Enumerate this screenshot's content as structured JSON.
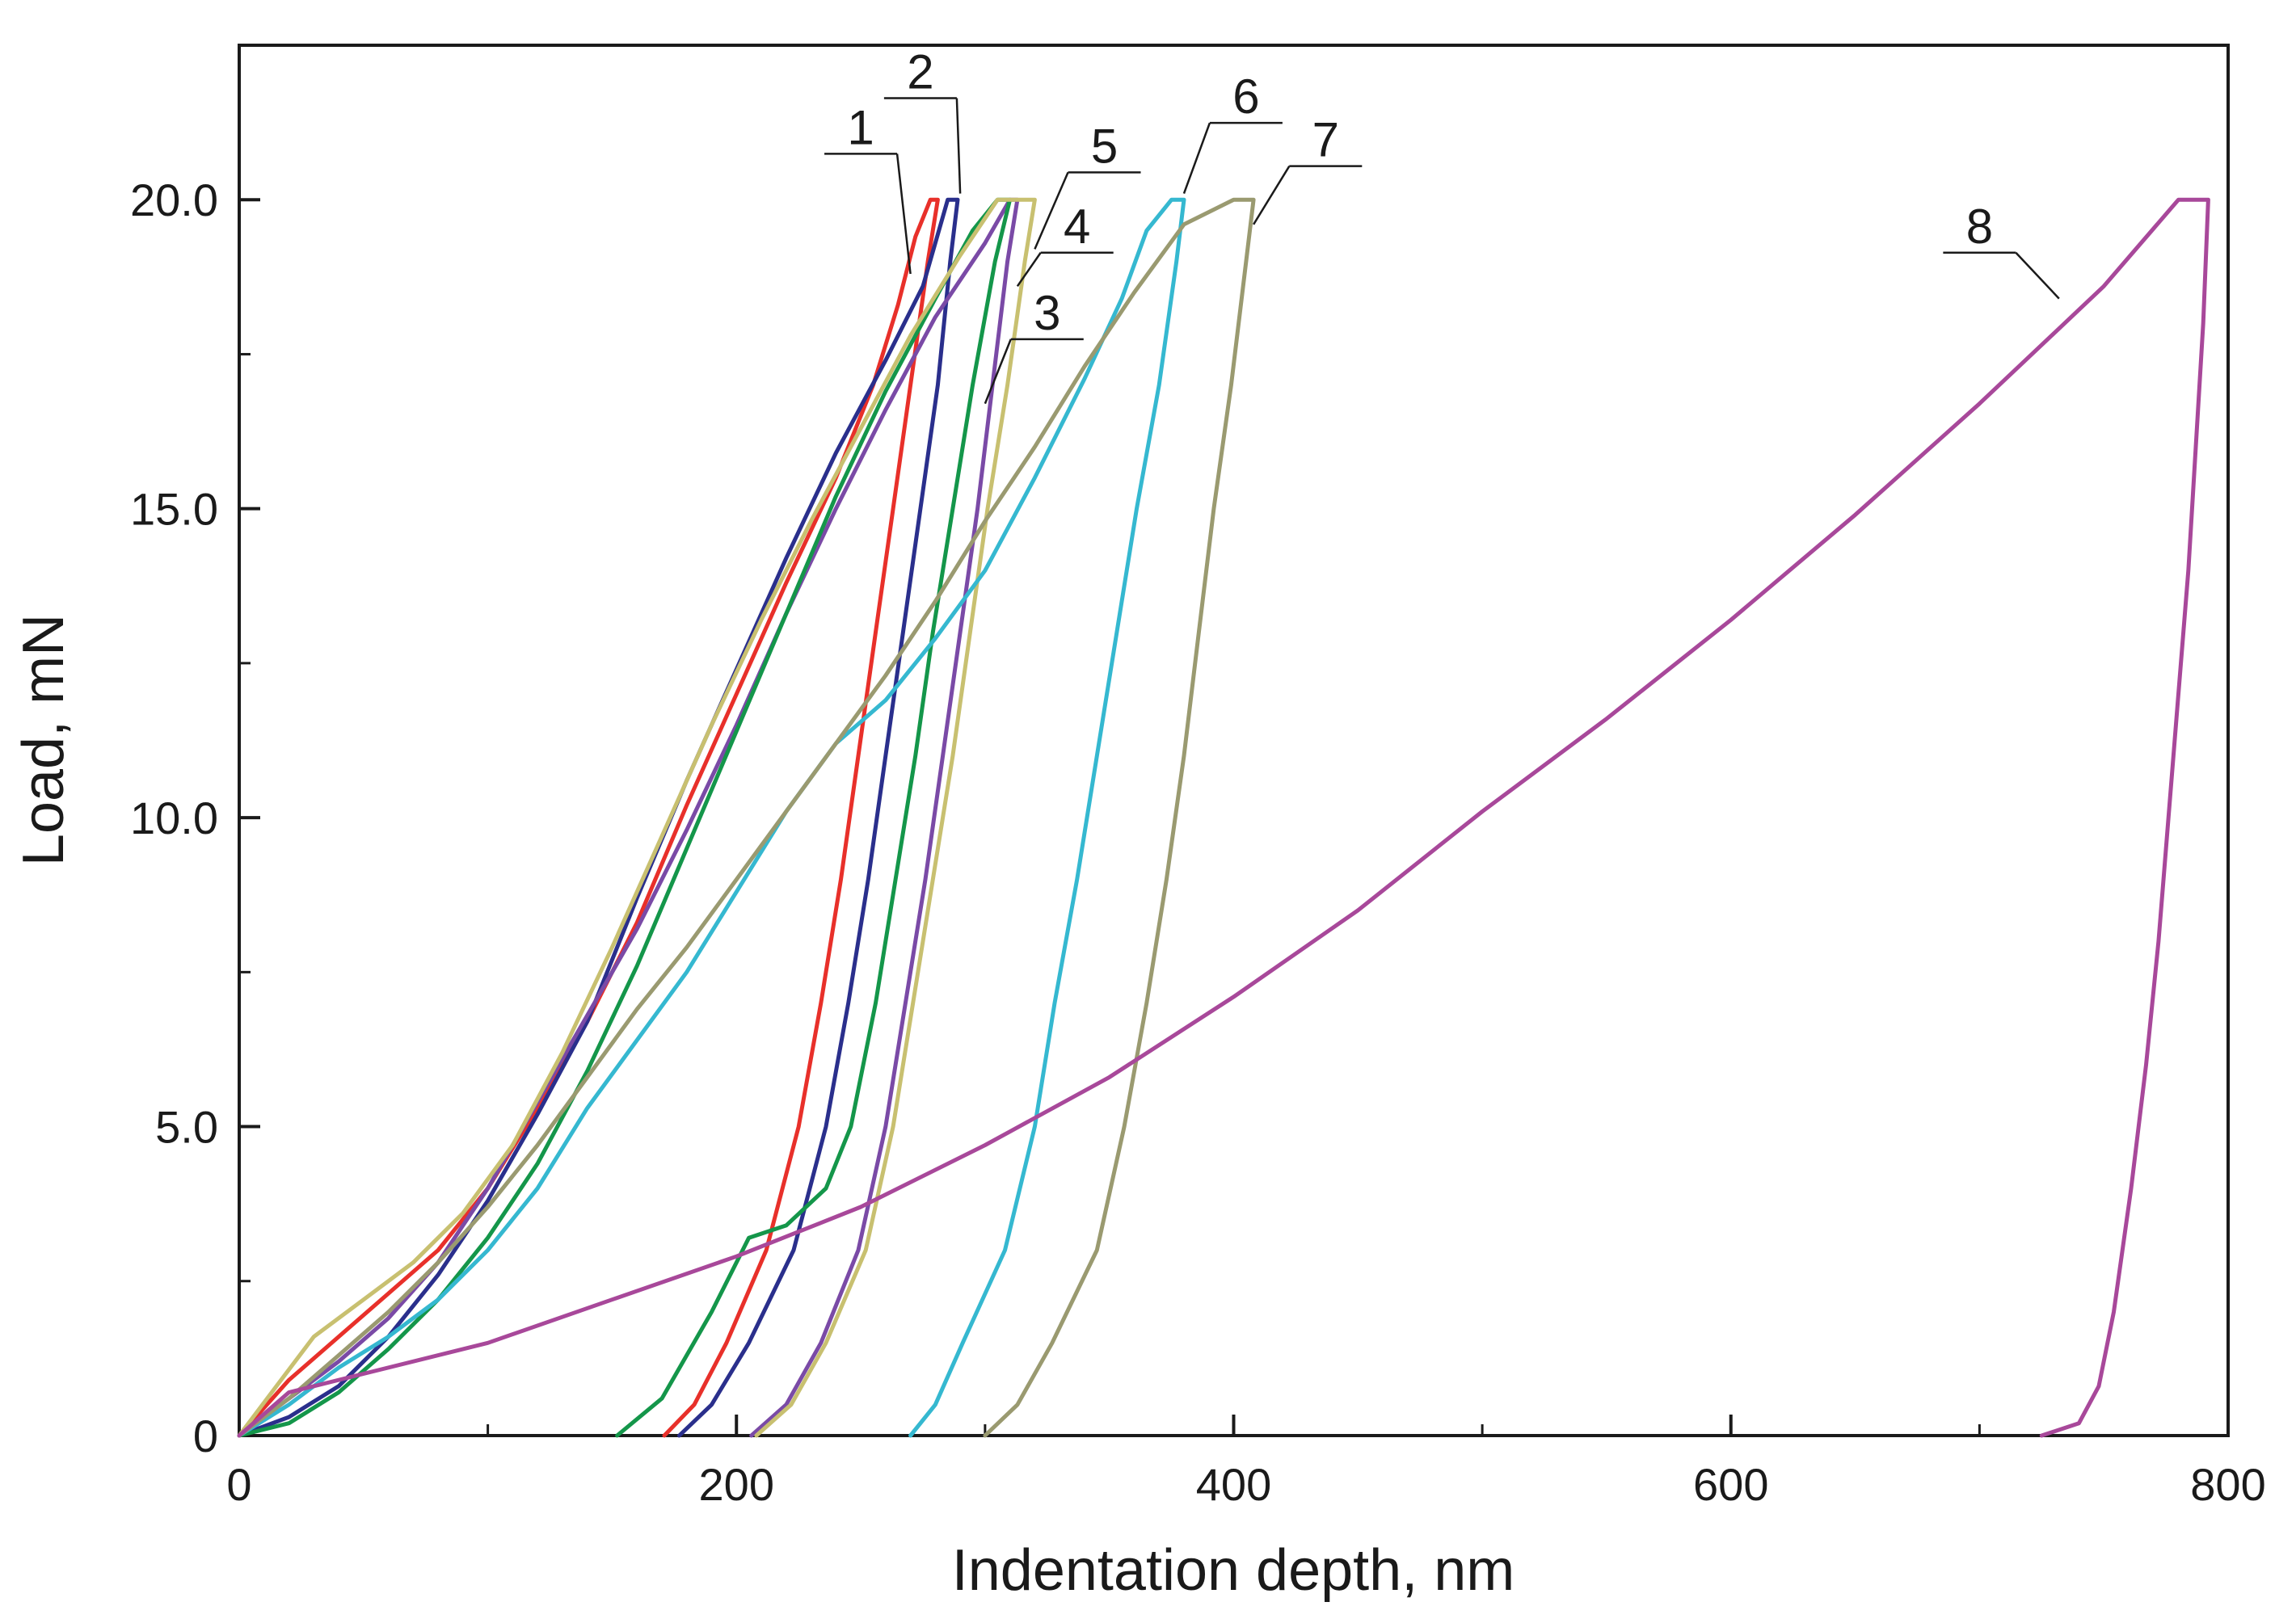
{
  "chart_data": {
    "type": "line",
    "title": "",
    "xlabel": "Indentation depth, nm",
    "ylabel": "Load, mN",
    "xlim": [
      0,
      800
    ],
    "ylim": [
      0,
      22.5
    ],
    "xticks": [
      0,
      200,
      400,
      600,
      800
    ],
    "xtick_labels": [
      "0",
      "200",
      "400",
      "600",
      "800"
    ],
    "yticks": [
      0,
      5,
      10,
      15,
      20
    ],
    "ytick_labels": [
      "0",
      "5.0",
      "10.0",
      "15.0",
      "20.0"
    ],
    "grid": false,
    "legend": "none",
    "series": [
      {
        "name": "1",
        "color": "#e8302a",
        "loading": [
          [
            0,
            0
          ],
          [
            20,
            0.9
          ],
          [
            40,
            1.6
          ],
          [
            60,
            2.3
          ],
          [
            80,
            3.0
          ],
          [
            100,
            4.0
          ],
          [
            120,
            5.3
          ],
          [
            140,
            6.7
          ],
          [
            160,
            8.3
          ],
          [
            180,
            10.2
          ],
          [
            200,
            12.0
          ],
          [
            220,
            13.8
          ],
          [
            240,
            15.5
          ],
          [
            255,
            17.0
          ],
          [
            265,
            18.3
          ],
          [
            272,
            19.4
          ],
          [
            278,
            20.0
          ]
        ],
        "holding": [
          [
            278,
            20.0
          ],
          [
            281,
            20.0
          ]
        ],
        "unloading": [
          [
            281,
            20.0
          ],
          [
            277,
            19.0
          ],
          [
            270,
            17.0
          ],
          [
            263,
            15.0
          ],
          [
            256,
            13.0
          ],
          [
            249,
            11.0
          ],
          [
            242,
            9.0
          ],
          [
            234,
            7.0
          ],
          [
            225,
            5.0
          ],
          [
            212,
            3.0
          ],
          [
            196,
            1.5
          ],
          [
            183,
            0.5
          ],
          [
            171,
            0
          ]
        ]
      },
      {
        "name": "2",
        "color": "#2a2f8c",
        "loading": [
          [
            0,
            0
          ],
          [
            20,
            0.3
          ],
          [
            40,
            0.8
          ],
          [
            60,
            1.6
          ],
          [
            80,
            2.6
          ],
          [
            100,
            3.8
          ],
          [
            120,
            5.2
          ],
          [
            140,
            6.7
          ],
          [
            160,
            8.7
          ],
          [
            180,
            10.6
          ],
          [
            200,
            12.4
          ],
          [
            220,
            14.2
          ],
          [
            240,
            15.9
          ],
          [
            260,
            17.4
          ],
          [
            275,
            18.6
          ],
          [
            285,
            20.0
          ]
        ],
        "holding": [
          [
            285,
            20.0
          ],
          [
            289,
            20.0
          ]
        ],
        "unloading": [
          [
            289,
            20.0
          ],
          [
            286,
            19.0
          ],
          [
            281,
            17.0
          ],
          [
            274,
            15.0
          ],
          [
            267,
            13.0
          ],
          [
            260,
            11.0
          ],
          [
            253,
            9.0
          ],
          [
            245,
            7.0
          ],
          [
            236,
            5.0
          ],
          [
            223,
            3.0
          ],
          [
            205,
            1.5
          ],
          [
            190,
            0.5
          ],
          [
            177,
            0
          ]
        ]
      },
      {
        "name": "3",
        "color": "#7a4aa6",
        "loading": [
          [
            0,
            0
          ],
          [
            20,
            0.6
          ],
          [
            40,
            1.2
          ],
          [
            60,
            1.9
          ],
          [
            80,
            2.8
          ],
          [
            100,
            4.0
          ],
          [
            120,
            5.4
          ],
          [
            140,
            6.8
          ],
          [
            160,
            8.2
          ],
          [
            180,
            9.8
          ],
          [
            200,
            11.5
          ],
          [
            220,
            13.3
          ],
          [
            240,
            15.0
          ],
          [
            260,
            16.6
          ],
          [
            280,
            18.1
          ],
          [
            300,
            19.3
          ],
          [
            310,
            20.0
          ]
        ],
        "holding": [
          [
            310,
            20.0
          ],
          [
            313,
            20.0
          ]
        ],
        "unloading": [
          [
            313,
            20.0
          ],
          [
            309,
            19.0
          ],
          [
            303,
            17.0
          ],
          [
            297,
            15.0
          ],
          [
            290,
            13.0
          ],
          [
            283,
            11.0
          ],
          [
            276,
            9.0
          ],
          [
            268,
            7.0
          ],
          [
            260,
            5.0
          ],
          [
            249,
            3.0
          ],
          [
            234,
            1.5
          ],
          [
            220,
            0.5
          ],
          [
            206,
            0
          ]
        ]
      },
      {
        "name": "4",
        "color": "#14964a",
        "loading": [
          [
            0,
            0
          ],
          [
            20,
            0.2
          ],
          [
            40,
            0.7
          ],
          [
            60,
            1.4
          ],
          [
            80,
            2.2
          ],
          [
            100,
            3.2
          ],
          [
            120,
            4.4
          ],
          [
            140,
            5.9
          ],
          [
            160,
            7.6
          ],
          [
            180,
            9.5
          ],
          [
            200,
            11.4
          ],
          [
            220,
            13.3
          ],
          [
            240,
            15.2
          ],
          [
            260,
            16.9
          ],
          [
            280,
            18.4
          ],
          [
            295,
            19.5
          ],
          [
            305,
            20.0
          ]
        ],
        "holding": [
          [
            305,
            20.0
          ],
          [
            310,
            20.0
          ]
        ],
        "unloading": [
          [
            310,
            20.0
          ],
          [
            304,
            19.0
          ],
          [
            295,
            17.0
          ],
          [
            287,
            15.0
          ],
          [
            279,
            13.0
          ],
          [
            272,
            11.0
          ],
          [
            264,
            9.0
          ],
          [
            256,
            7.0
          ],
          [
            246,
            5.0
          ],
          [
            236,
            4.0
          ],
          [
            220,
            3.4
          ],
          [
            205,
            3.2
          ],
          [
            190,
            2.0
          ],
          [
            170,
            0.6
          ],
          [
            152,
            0
          ]
        ]
      },
      {
        "name": "5",
        "color": "#c8c070",
        "loading": [
          [
            0,
            0
          ],
          [
            15,
            0.8
          ],
          [
            30,
            1.6
          ],
          [
            50,
            2.2
          ],
          [
            70,
            2.8
          ],
          [
            90,
            3.6
          ],
          [
            110,
            4.7
          ],
          [
            130,
            6.2
          ],
          [
            150,
            7.9
          ],
          [
            170,
            9.7
          ],
          [
            190,
            11.5
          ],
          [
            210,
            13.2
          ],
          [
            230,
            14.8
          ],
          [
            250,
            16.3
          ],
          [
            270,
            17.8
          ],
          [
            290,
            19.1
          ],
          [
            305,
            20.0
          ]
        ],
        "holding": [
          [
            305,
            20.0
          ],
          [
            320,
            20.0
          ]
        ],
        "unloading": [
          [
            320,
            20.0
          ],
          [
            316,
            19.0
          ],
          [
            309,
            17.0
          ],
          [
            301,
            15.0
          ],
          [
            294,
            13.0
          ],
          [
            287,
            11.0
          ],
          [
            279,
            9.0
          ],
          [
            271,
            7.0
          ],
          [
            263,
            5.0
          ],
          [
            252,
            3.0
          ],
          [
            236,
            1.5
          ],
          [
            222,
            0.5
          ],
          [
            208,
            0
          ]
        ]
      },
      {
        "name": "6",
        "color": "#35b8d0",
        "loading": [
          [
            0,
            0
          ],
          [
            20,
            0.5
          ],
          [
            40,
            1.1
          ],
          [
            60,
            1.6
          ],
          [
            80,
            2.2
          ],
          [
            100,
            3.0
          ],
          [
            120,
            4.0
          ],
          [
            140,
            5.3
          ],
          [
            160,
            6.4
          ],
          [
            180,
            7.5
          ],
          [
            200,
            8.8
          ],
          [
            220,
            10.1
          ],
          [
            240,
            11.2
          ],
          [
            260,
            11.9
          ],
          [
            280,
            12.9
          ],
          [
            300,
            14.0
          ],
          [
            320,
            15.5
          ],
          [
            340,
            17.1
          ],
          [
            355,
            18.4
          ],
          [
            365,
            19.5
          ],
          [
            375,
            20.0
          ]
        ],
        "holding": [
          [
            375,
            20.0
          ],
          [
            380,
            20.0
          ]
        ],
        "unloading": [
          [
            380,
            20.0
          ],
          [
            377,
            19.0
          ],
          [
            370,
            17.0
          ],
          [
            361,
            15.0
          ],
          [
            353,
            13.0
          ],
          [
            345,
            11.0
          ],
          [
            337,
            9.0
          ],
          [
            328,
            7.0
          ],
          [
            320,
            5.0
          ],
          [
            308,
            3.0
          ],
          [
            291,
            1.5
          ],
          [
            280,
            0.5
          ],
          [
            270,
            0
          ]
        ]
      },
      {
        "name": "7",
        "color": "#9a9a70",
        "loading": [
          [
            0,
            0
          ],
          [
            20,
            0.6
          ],
          [
            40,
            1.3
          ],
          [
            60,
            2.0
          ],
          [
            80,
            2.8
          ],
          [
            100,
            3.7
          ],
          [
            120,
            4.7
          ],
          [
            140,
            5.8
          ],
          [
            160,
            6.9
          ],
          [
            180,
            7.9
          ],
          [
            200,
            9.0
          ],
          [
            220,
            10.1
          ],
          [
            240,
            11.2
          ],
          [
            260,
            12.3
          ],
          [
            280,
            13.5
          ],
          [
            300,
            14.8
          ],
          [
            320,
            16.0
          ],
          [
            340,
            17.3
          ],
          [
            360,
            18.5
          ],
          [
            380,
            19.6
          ],
          [
            400,
            20.0
          ]
        ],
        "holding": [
          [
            400,
            20.0
          ],
          [
            408,
            20.0
          ]
        ],
        "unloading": [
          [
            408,
            20.0
          ],
          [
            405,
            19.0
          ],
          [
            399,
            17.0
          ],
          [
            392,
            15.0
          ],
          [
            386,
            13.0
          ],
          [
            380,
            11.0
          ],
          [
            373,
            9.0
          ],
          [
            365,
            7.0
          ],
          [
            356,
            5.0
          ],
          [
            345,
            3.0
          ],
          [
            327,
            1.5
          ],
          [
            313,
            0.5
          ],
          [
            300,
            0
          ]
        ]
      },
      {
        "name": "8",
        "color": "#a8489a",
        "loading": [
          [
            0,
            0
          ],
          [
            20,
            0.7
          ],
          [
            50,
            1.0
          ],
          [
            100,
            1.5
          ],
          [
            150,
            2.2
          ],
          [
            200,
            2.9
          ],
          [
            250,
            3.7
          ],
          [
            300,
            4.7
          ],
          [
            350,
            5.8
          ],
          [
            400,
            7.1
          ],
          [
            450,
            8.5
          ],
          [
            500,
            10.1
          ],
          [
            550,
            11.6
          ],
          [
            600,
            13.2
          ],
          [
            650,
            14.9
          ],
          [
            700,
            16.7
          ],
          [
            750,
            18.6
          ],
          [
            780,
            20.0
          ]
        ],
        "holding": [
          [
            780,
            20.0
          ],
          [
            792,
            20.0
          ]
        ],
        "unloading": [
          [
            792,
            20.0
          ],
          [
            790,
            18.0
          ],
          [
            787,
            16.0
          ],
          [
            784,
            14.0
          ],
          [
            780,
            12.0
          ],
          [
            776,
            10.0
          ],
          [
            772,
            8.0
          ],
          [
            767,
            6.0
          ],
          [
            761,
            4.0
          ],
          [
            754,
            2.0
          ],
          [
            748,
            0.8
          ],
          [
            740,
            0.2
          ],
          [
            725,
            0
          ]
        ]
      }
    ],
    "annotations": [
      {
        "text": "1",
        "anchor": [
          270,
          18.8
        ],
        "label_at": [
          250,
          20.9
        ]
      },
      {
        "text": "2",
        "anchor": [
          290,
          20.1
        ],
        "label_at": [
          274,
          21.8
        ]
      },
      {
        "text": "3",
        "anchor": [
          300,
          16.7
        ],
        "label_at": [
          325,
          17.9
        ]
      },
      {
        "text": "4",
        "anchor": [
          313,
          18.6
        ],
        "label_at": [
          337,
          19.3
        ]
      },
      {
        "text": "5",
        "anchor": [
          320,
          19.2
        ],
        "label_at": [
          348,
          20.6
        ]
      },
      {
        "text": "6",
        "anchor": [
          380,
          20.1
        ],
        "label_at": [
          405,
          21.4
        ]
      },
      {
        "text": "7",
        "anchor": [
          408,
          19.6
        ],
        "label_at": [
          437,
          20.7
        ]
      },
      {
        "text": "8",
        "anchor": [
          732,
          18.4
        ],
        "label_at": [
          700,
          19.3
        ]
      }
    ]
  }
}
